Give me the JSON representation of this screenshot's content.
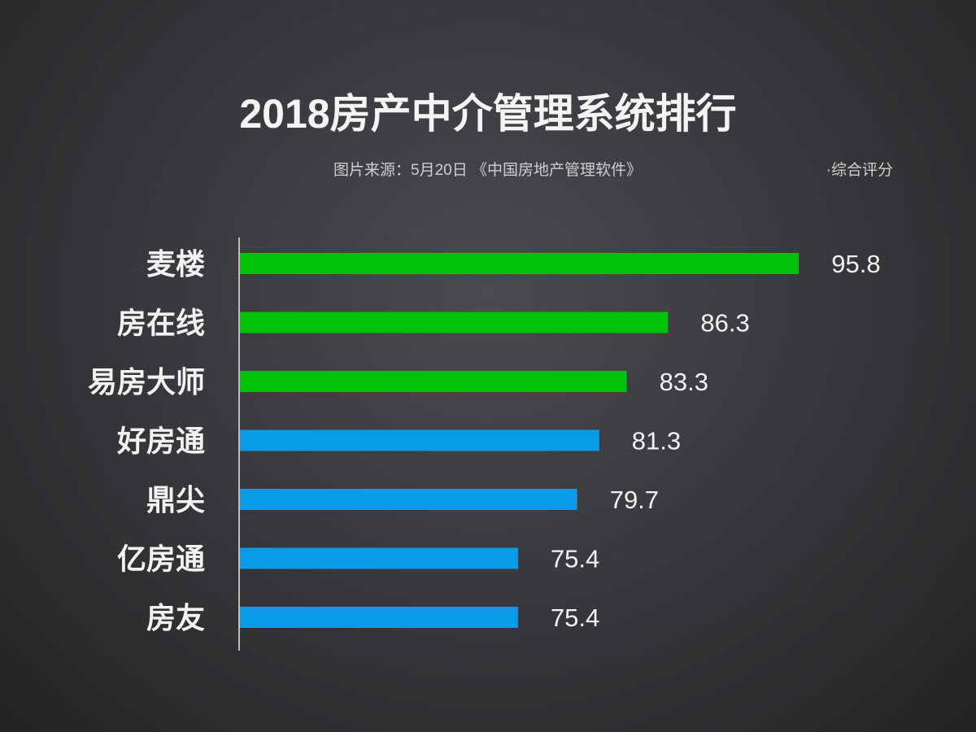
{
  "chart_data": {
    "type": "bar",
    "orientation": "horizontal",
    "title": "2018房产中介管理系统排行",
    "subtitle": "图片来源：5月20日 《中国房地产管理软件》",
    "note": "·综合评分",
    "categories": [
      "麦楼",
      "房在线",
      "易房大师",
      "好房通",
      "鼎尖",
      "亿房通",
      "房友"
    ],
    "values": [
      95.8,
      86.3,
      83.3,
      81.3,
      79.7,
      75.4,
      75.4
    ],
    "bar_colors": [
      "#00c20a",
      "#00c20a",
      "#00c20a",
      "#0a9be6",
      "#0a9be6",
      "#0a9be6",
      "#0a9be6"
    ],
    "xlim": [
      55.2,
      96.2
    ],
    "data_labels": true,
    "grid": false,
    "legend": "none"
  }
}
